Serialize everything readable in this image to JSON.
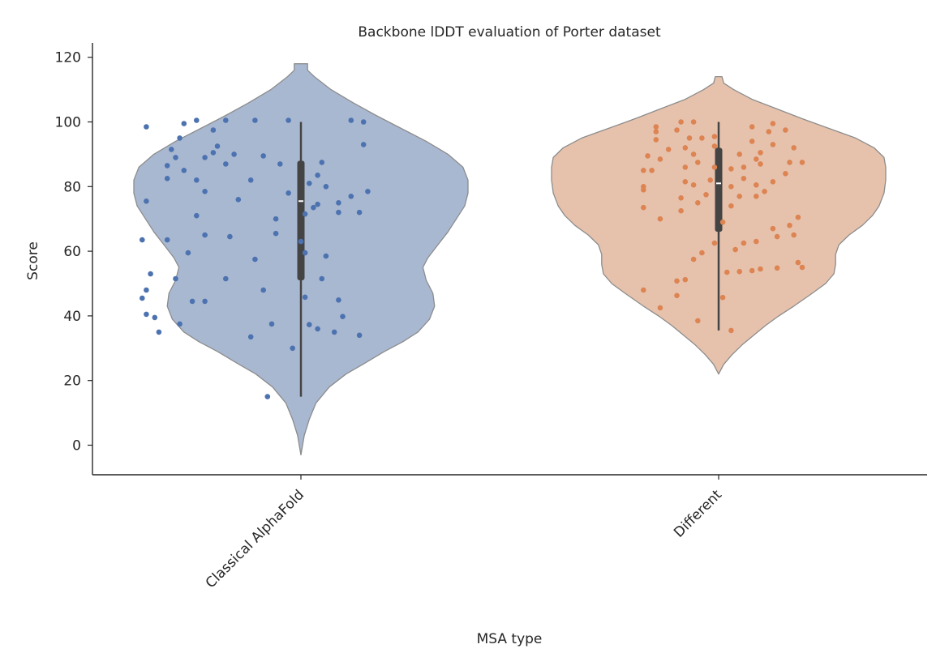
{
  "chart_data": {
    "type": "violin",
    "title": "Backbone lDDT evaluation of Porter dataset",
    "xlabel": "MSA type",
    "ylabel": "Score",
    "ylim": [
      -9,
      124
    ],
    "yticks": [
      0,
      20,
      40,
      60,
      80,
      100,
      120
    ],
    "grid": false,
    "colors": {
      "Classical AlphaFold": {
        "violin": "#a9b8d1",
        "points": "#4c72b0"
      },
      "Different": {
        "violin": "#e6c2ad",
        "points": "#dd8452"
      }
    },
    "series": [
      {
        "category": "Classical AlphaFold",
        "box": {
          "min": 15,
          "q1": 51,
          "median": 75.5,
          "q3": 88,
          "max": 100
        },
        "kde_range": [
          -3,
          118
        ],
        "density": [
          [
            -3,
            0.0
          ],
          [
            3,
            0.02
          ],
          [
            8,
            0.05
          ],
          [
            13,
            0.09
          ],
          [
            18,
            0.17
          ],
          [
            22,
            0.27
          ],
          [
            25,
            0.37
          ],
          [
            29,
            0.5
          ],
          [
            32,
            0.61
          ],
          [
            35,
            0.7
          ],
          [
            39,
            0.77
          ],
          [
            43,
            0.8
          ],
          [
            47,
            0.79
          ],
          [
            51,
            0.75
          ],
          [
            55,
            0.73
          ],
          [
            58,
            0.76
          ],
          [
            62,
            0.82
          ],
          [
            66,
            0.88
          ],
          [
            70,
            0.93
          ],
          [
            74,
            0.98
          ],
          [
            78,
            1.0
          ],
          [
            82,
            1.0
          ],
          [
            86,
            0.97
          ],
          [
            90,
            0.88
          ],
          [
            94,
            0.75
          ],
          [
            98,
            0.6
          ],
          [
            102,
            0.45
          ],
          [
            106,
            0.31
          ],
          [
            110,
            0.18
          ],
          [
            114,
            0.08
          ],
          [
            116,
            0.04
          ],
          [
            118,
            0.04
          ]
        ],
        "points": [
          [
            0.92,
            15
          ],
          [
            0.98,
            30
          ],
          [
            0.88,
            33.5
          ],
          [
            1.14,
            34
          ],
          [
            0.66,
            35
          ],
          [
            1.08,
            35
          ],
          [
            1.04,
            36
          ],
          [
            1.02,
            37.3
          ],
          [
            0.71,
            37.5
          ],
          [
            0.93,
            37.5
          ],
          [
            0.65,
            39.5
          ],
          [
            1.1,
            39.8
          ],
          [
            0.63,
            40.5
          ],
          [
            0.74,
            44.5
          ],
          [
            0.77,
            44.5
          ],
          [
            1.09,
            44.9
          ],
          [
            0.62,
            45.5
          ],
          [
            1.01,
            45.8
          ],
          [
            0.63,
            48
          ],
          [
            0.91,
            48
          ],
          [
            0.7,
            51.5
          ],
          [
            0.82,
            51.5
          ],
          [
            1.05,
            51.5
          ],
          [
            0.64,
            53
          ],
          [
            0.89,
            57.5
          ],
          [
            0.73,
            59.5
          ],
          [
            1.01,
            59.5
          ],
          [
            1.06,
            58.5
          ],
          [
            1.0,
            63
          ],
          [
            0.83,
            64.5
          ],
          [
            0.77,
            65
          ],
          [
            0.94,
            65.5
          ],
          [
            0.68,
            63.5
          ],
          [
            0.62,
            63.5
          ],
          [
            0.75,
            71
          ],
          [
            0.94,
            70
          ],
          [
            1.01,
            71.5
          ],
          [
            1.09,
            72
          ],
          [
            1.14,
            72
          ],
          [
            1.03,
            73.5
          ],
          [
            1.04,
            74.5
          ],
          [
            1.09,
            75
          ],
          [
            0.63,
            75.5
          ],
          [
            0.85,
            76
          ],
          [
            1.12,
            77
          ],
          [
            0.97,
            78
          ],
          [
            1.16,
            78.5
          ],
          [
            0.77,
            78.5
          ],
          [
            1.06,
            80
          ],
          [
            1.02,
            81
          ],
          [
            0.75,
            82
          ],
          [
            0.88,
            82
          ],
          [
            0.68,
            82.5
          ],
          [
            1.04,
            83.5
          ],
          [
            0.72,
            85
          ],
          [
            0.68,
            86.5
          ],
          [
            0.82,
            87
          ],
          [
            0.95,
            87
          ],
          [
            1.05,
            87.5
          ],
          [
            0.7,
            89
          ],
          [
            0.91,
            89.5
          ],
          [
            0.77,
            89
          ],
          [
            0.79,
            90.5
          ],
          [
            0.84,
            90
          ],
          [
            0.69,
            91.5
          ],
          [
            0.8,
            92.5
          ],
          [
            1.15,
            93
          ],
          [
            0.71,
            95
          ],
          [
            0.79,
            97.5
          ],
          [
            0.63,
            98.5
          ],
          [
            0.72,
            99.5
          ],
          [
            0.75,
            100.5
          ],
          [
            0.82,
            100.5
          ],
          [
            0.89,
            100.5
          ],
          [
            0.97,
            100.5
          ],
          [
            1.12,
            100.5
          ],
          [
            1.15,
            100
          ]
        ]
      },
      {
        "category": "Different",
        "box": {
          "min": 35.5,
          "q1": 66,
          "median": 81,
          "q3": 92,
          "max": 100
        },
        "kde_range": [
          22,
          114
        ],
        "density": [
          [
            22,
            0.0
          ],
          [
            25,
            0.03
          ],
          [
            28,
            0.08
          ],
          [
            31,
            0.14
          ],
          [
            34,
            0.21
          ],
          [
            37,
            0.28
          ],
          [
            40,
            0.36
          ],
          [
            43,
            0.45
          ],
          [
            47,
            0.56
          ],
          [
            50,
            0.64
          ],
          [
            53,
            0.69
          ],
          [
            56,
            0.7
          ],
          [
            59,
            0.7
          ],
          [
            62,
            0.72
          ],
          [
            65,
            0.78
          ],
          [
            68,
            0.86
          ],
          [
            71,
            0.92
          ],
          [
            74,
            0.96
          ],
          [
            78,
            0.99
          ],
          [
            82,
            1.0
          ],
          [
            86,
            1.0
          ],
          [
            89,
            0.99
          ],
          [
            92,
            0.93
          ],
          [
            95,
            0.82
          ],
          [
            98,
            0.66
          ],
          [
            101,
            0.5
          ],
          [
            104,
            0.35
          ],
          [
            107,
            0.2
          ],
          [
            110,
            0.09
          ],
          [
            112,
            0.03
          ],
          [
            114,
            0.02
          ]
        ],
        "points": [
          [
            2.03,
            35.5
          ],
          [
            1.86,
            42.5
          ],
          [
            1.95,
            38.5
          ],
          [
            2.01,
            45.7
          ],
          [
            1.82,
            48
          ],
          [
            1.9,
            46.3
          ],
          [
            1.9,
            50.8
          ],
          [
            1.92,
            51.2
          ],
          [
            2.02,
            53.5
          ],
          [
            2.05,
            53.7
          ],
          [
            2.08,
            54
          ],
          [
            2.1,
            54.5
          ],
          [
            2.14,
            54.8
          ],
          [
            2.2,
            55
          ],
          [
            2.19,
            56.5
          ],
          [
            1.94,
            57.5
          ],
          [
            1.96,
            59.5
          ],
          [
            2.04,
            60.5
          ],
          [
            1.99,
            62.5
          ],
          [
            2.06,
            62.5
          ],
          [
            2.09,
            63
          ],
          [
            2.14,
            64.5
          ],
          [
            2.18,
            65
          ],
          [
            2.13,
            67
          ],
          [
            2.17,
            68
          ],
          [
            2.01,
            69
          ],
          [
            2.19,
            70.5
          ],
          [
            1.86,
            70
          ],
          [
            1.82,
            73.5
          ],
          [
            1.91,
            72.5
          ],
          [
            2.03,
            74
          ],
          [
            1.95,
            75
          ],
          [
            1.91,
            76.5
          ],
          [
            1.97,
            77.5
          ],
          [
            2.05,
            77
          ],
          [
            2.09,
            77
          ],
          [
            2.11,
            78.5
          ],
          [
            1.82,
            79
          ],
          [
            1.82,
            80
          ],
          [
            1.94,
            80.5
          ],
          [
            2.03,
            80
          ],
          [
            2.09,
            80.5
          ],
          [
            2.13,
            81.5
          ],
          [
            1.92,
            81.5
          ],
          [
            1.98,
            82
          ],
          [
            2.06,
            82.5
          ],
          [
            2.16,
            84
          ],
          [
            1.82,
            85
          ],
          [
            1.84,
            85
          ],
          [
            1.92,
            86
          ],
          [
            1.99,
            86
          ],
          [
            2.03,
            85.5
          ],
          [
            2.06,
            86
          ],
          [
            1.95,
            87.5
          ],
          [
            2.1,
            87
          ],
          [
            2.17,
            87.5
          ],
          [
            2.2,
            87.5
          ],
          [
            1.86,
            88.5
          ],
          [
            2.09,
            88.5
          ],
          [
            1.83,
            89.5
          ],
          [
            1.94,
            90
          ],
          [
            2.05,
            90
          ],
          [
            2.1,
            90.5
          ],
          [
            1.88,
            91.5
          ],
          [
            1.92,
            92
          ],
          [
            2.18,
            92
          ],
          [
            1.99,
            92.5
          ],
          [
            2.13,
            93
          ],
          [
            2.08,
            94
          ],
          [
            1.85,
            94.5
          ],
          [
            1.93,
            95
          ],
          [
            1.96,
            95
          ],
          [
            1.99,
            95.5
          ],
          [
            1.85,
            97
          ],
          [
            1.9,
            97.5
          ],
          [
            2.12,
            97
          ],
          [
            2.16,
            97.5
          ],
          [
            1.85,
            98.5
          ],
          [
            2.08,
            98.5
          ],
          [
            2.13,
            99.5
          ],
          [
            1.91,
            100
          ],
          [
            1.94,
            100
          ]
        ]
      }
    ]
  }
}
